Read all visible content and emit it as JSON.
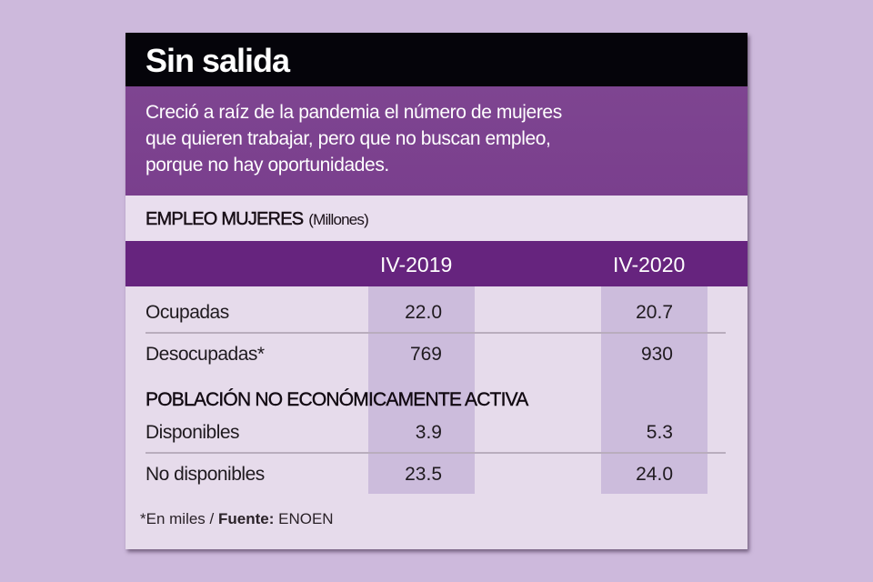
{
  "title": "Sin salida",
  "subtitle_lines": [
    "Creció a raíz de la pandemia el número de mujeres",
    "que quieren trabajar, pero que no buscan empleo,",
    "porque no hay oportunidades."
  ],
  "section_title": "EMPLEO MUJERES",
  "section_unit": "(Millones)",
  "colors": {
    "background": "#cdb9dc",
    "title_bar": "#05040a",
    "subtitle_bg": "#7b408e",
    "header_bg": "#66247e",
    "body_bg": "#e6dbeb",
    "column_shade": "#ccbcdc"
  },
  "chart_data": {
    "type": "table",
    "title": "Sin salida",
    "columns": [
      "IV-2019",
      "IV-2020"
    ],
    "rows": [
      {
        "label": "Ocupadas",
        "values": [
          "22.0",
          "20.7"
        ]
      },
      {
        "label": "Desocupadas*",
        "values": [
          "769",
          "930"
        ]
      },
      {
        "label": "Disponibles",
        "values": [
          "3.9",
          "5.3"
        ]
      },
      {
        "label": "No disponibles",
        "values": [
          "23.5",
          "24.0"
        ]
      }
    ],
    "group_heading": "POBLACIÓN NO ECONÓMICAMENTE ACTIVA",
    "footnote": "*En miles /",
    "source_label": "Fuente:",
    "source": "ENOEN"
  }
}
